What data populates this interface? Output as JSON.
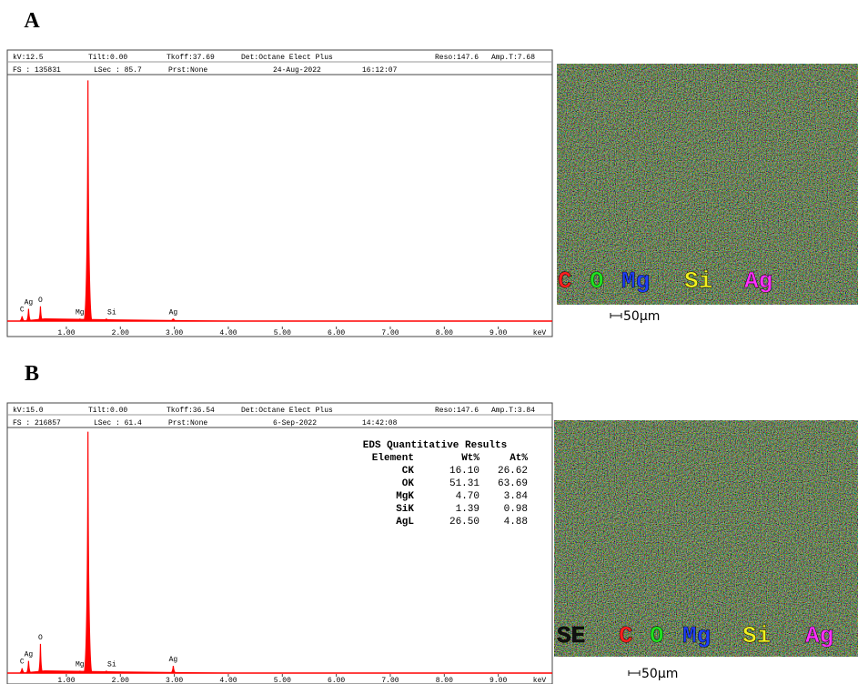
{
  "panels": [
    {
      "label": "A",
      "header": {
        "row1": [
          "kV:12.5",
          "Tilt:0.00",
          "Tkoff:37.69",
          "Det:Octane Elect Plus",
          "Reso:147.6",
          "Amp.T:7.68"
        ],
        "row2": [
          "FS : 135831",
          "LSec : 85.7",
          "Prst:None",
          "24-Aug-2022",
          "16:12:07"
        ]
      },
      "spectrum": {
        "xlim": [
          0,
          10
        ],
        "ylim": [
          0,
          100
        ],
        "color": "#ff0000",
        "x_unit": "keV",
        "xticks": [
          {
            "value": 1,
            "label": "1.00"
          },
          {
            "value": 2,
            "label": "2.00"
          },
          {
            "value": 3,
            "label": "3.00"
          },
          {
            "value": 4,
            "label": "4.00"
          },
          {
            "value": 5,
            "label": "5.00"
          },
          {
            "value": 6,
            "label": "6.00"
          },
          {
            "value": 7,
            "label": "7.00"
          },
          {
            "value": 8,
            "label": "8.00"
          },
          {
            "value": 9,
            "label": "9.00"
          }
        ],
        "peaks": [
          {
            "label": "C",
            "energy": 0.18,
            "height": 2
          },
          {
            "label": "Ag",
            "energy": 0.3,
            "height": 5
          },
          {
            "label": "O",
            "energy": 0.52,
            "height": 6
          },
          {
            "label": "Mg",
            "energy": 1.25,
            "height": 1
          },
          {
            "label": null,
            "energy": 1.4,
            "height": 98
          },
          {
            "label": "Si",
            "energy": 1.74,
            "height": 1
          },
          {
            "label": "Ag",
            "energy": 2.98,
            "height": 1
          }
        ]
      },
      "map": {
        "elements": [
          {
            "name": "C",
            "color": "#ff2020"
          },
          {
            "name": "O",
            "color": "#20e020"
          },
          {
            "name": "Mg",
            "color": "#2040ff"
          },
          {
            "name": "Si",
            "color": "#f0f020"
          },
          {
            "name": "Ag",
            "color": "#ff30ff"
          }
        ],
        "scale": "50µm"
      }
    },
    {
      "label": "B",
      "header": {
        "row1": [
          "kV:15.0",
          "Tilt:0.00",
          "Tkoff:36.54",
          "Det:Octane Elect Plus",
          "Reso:147.6",
          "Amp.T:3.84"
        ],
        "row2": [
          "FS : 216857",
          "LSec : 61.4",
          "Prst:None",
          "6-Sep-2022",
          "14:42:08"
        ]
      },
      "spectrum": {
        "xlim": [
          0,
          10
        ],
        "ylim": [
          0,
          100
        ],
        "color": "#ff0000",
        "x_unit": "keV",
        "xticks": [
          {
            "value": 1,
            "label": "1.00"
          },
          {
            "value": 2,
            "label": "2.00"
          },
          {
            "value": 3,
            "label": "3.00"
          },
          {
            "value": 4,
            "label": "4.00"
          },
          {
            "value": 5,
            "label": "5.00"
          },
          {
            "value": 6,
            "label": "6.00"
          },
          {
            "value": 7,
            "label": "7.00"
          },
          {
            "value": 8,
            "label": "8.00"
          },
          {
            "value": 9,
            "label": "9.00"
          }
        ],
        "peaks": [
          {
            "label": "C",
            "energy": 0.18,
            "height": 2
          },
          {
            "label": "Ag",
            "energy": 0.3,
            "height": 5
          },
          {
            "label": "O",
            "energy": 0.52,
            "height": 12
          },
          {
            "label": "Mg",
            "energy": 1.25,
            "height": 1
          },
          {
            "label": null,
            "energy": 1.4,
            "height": 99
          },
          {
            "label": "Si",
            "energy": 1.74,
            "height": 1
          },
          {
            "label": "Ag",
            "energy": 2.98,
            "height": 3
          }
        ],
        "table": {
          "title": "EDS Quantitative Results",
          "columns": [
            "Element",
            "Wt%",
            "At%"
          ],
          "rows": [
            [
              "CK",
              "16.10",
              "26.62"
            ],
            [
              "OK",
              "51.31",
              "63.69"
            ],
            [
              "MgK",
              "4.70",
              "3.84"
            ],
            [
              "SiK",
              "1.39",
              "0.98"
            ],
            [
              "AgL",
              "26.50",
              "4.88"
            ]
          ]
        }
      },
      "map": {
        "elements": [
          {
            "name": "SE",
            "color": "#111111"
          },
          {
            "name": "C",
            "color": "#ff2020"
          },
          {
            "name": "O",
            "color": "#20e020"
          },
          {
            "name": "Mg",
            "color": "#2040ff"
          },
          {
            "name": "Si",
            "color": "#f0f020"
          },
          {
            "name": "Ag",
            "color": "#ff30ff"
          }
        ],
        "scale": "50µm"
      }
    }
  ]
}
